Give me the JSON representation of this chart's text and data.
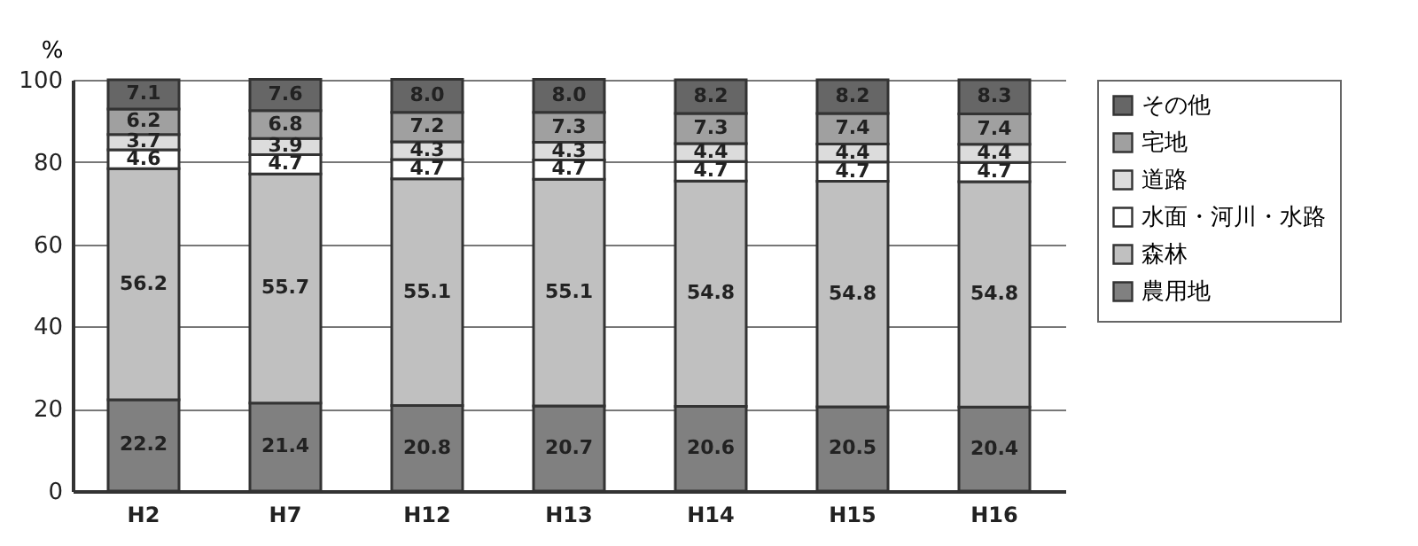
{
  "chart_data": {
    "type": "bar",
    "stacked": true,
    "ylabel": "%",
    "categories": [
      "H2",
      "H7",
      "H12",
      "H13",
      "H14",
      "H15",
      "H16"
    ],
    "series": [
      {
        "name": "農用地",
        "color": "#808080",
        "values": [
          22.2,
          21.4,
          20.8,
          20.7,
          20.6,
          20.5,
          20.4
        ],
        "value_labels": [
          "22.2",
          "21.4",
          "20.8",
          "20.7",
          "20.6",
          "20.5",
          "20.4"
        ]
      },
      {
        "name": "森林",
        "color": "#c0c0c0",
        "values": [
          56.2,
          55.7,
          55.1,
          55.1,
          54.8,
          54.8,
          54.8
        ],
        "value_labels": [
          "56.2",
          "55.7",
          "55.1",
          "55.1",
          "54.8",
          "54.8",
          "54.8"
        ]
      },
      {
        "name": "水面・河川・水路",
        "color": "#ffffff",
        "values": [
          4.6,
          4.7,
          4.7,
          4.7,
          4.7,
          4.7,
          4.7
        ],
        "value_labels": [
          "4.6",
          "4.7",
          "4.7",
          "4.7",
          "4.7",
          "4.7",
          "4.7"
        ]
      },
      {
        "name": "道路",
        "color": "#dcdcdc",
        "values": [
          3.7,
          3.9,
          4.3,
          4.3,
          4.4,
          4.4,
          4.4
        ],
        "value_labels": [
          "3.7",
          "3.9",
          "4.3",
          "4.3",
          "4.4",
          "4.4",
          "4.4"
        ]
      },
      {
        "name": "宅地",
        "color": "#a0a0a0",
        "values": [
          6.2,
          6.8,
          7.2,
          7.3,
          7.3,
          7.4,
          7.4
        ],
        "value_labels": [
          "6.2",
          "6.8",
          "7.2",
          "7.3",
          "7.3",
          "7.4",
          "7.4"
        ]
      },
      {
        "name": "その他",
        "color": "#666666",
        "values": [
          7.1,
          7.6,
          8.0,
          8.0,
          8.2,
          8.2,
          8.3
        ],
        "value_labels": [
          "7.1",
          "7.6",
          "8.0",
          "8.0",
          "8.2",
          "8.2",
          "8.3"
        ]
      }
    ],
    "ylim": [
      0,
      100
    ],
    "yticks": [
      0,
      20,
      40,
      60,
      80,
      100
    ],
    "grid": "y",
    "legend": "top right"
  }
}
